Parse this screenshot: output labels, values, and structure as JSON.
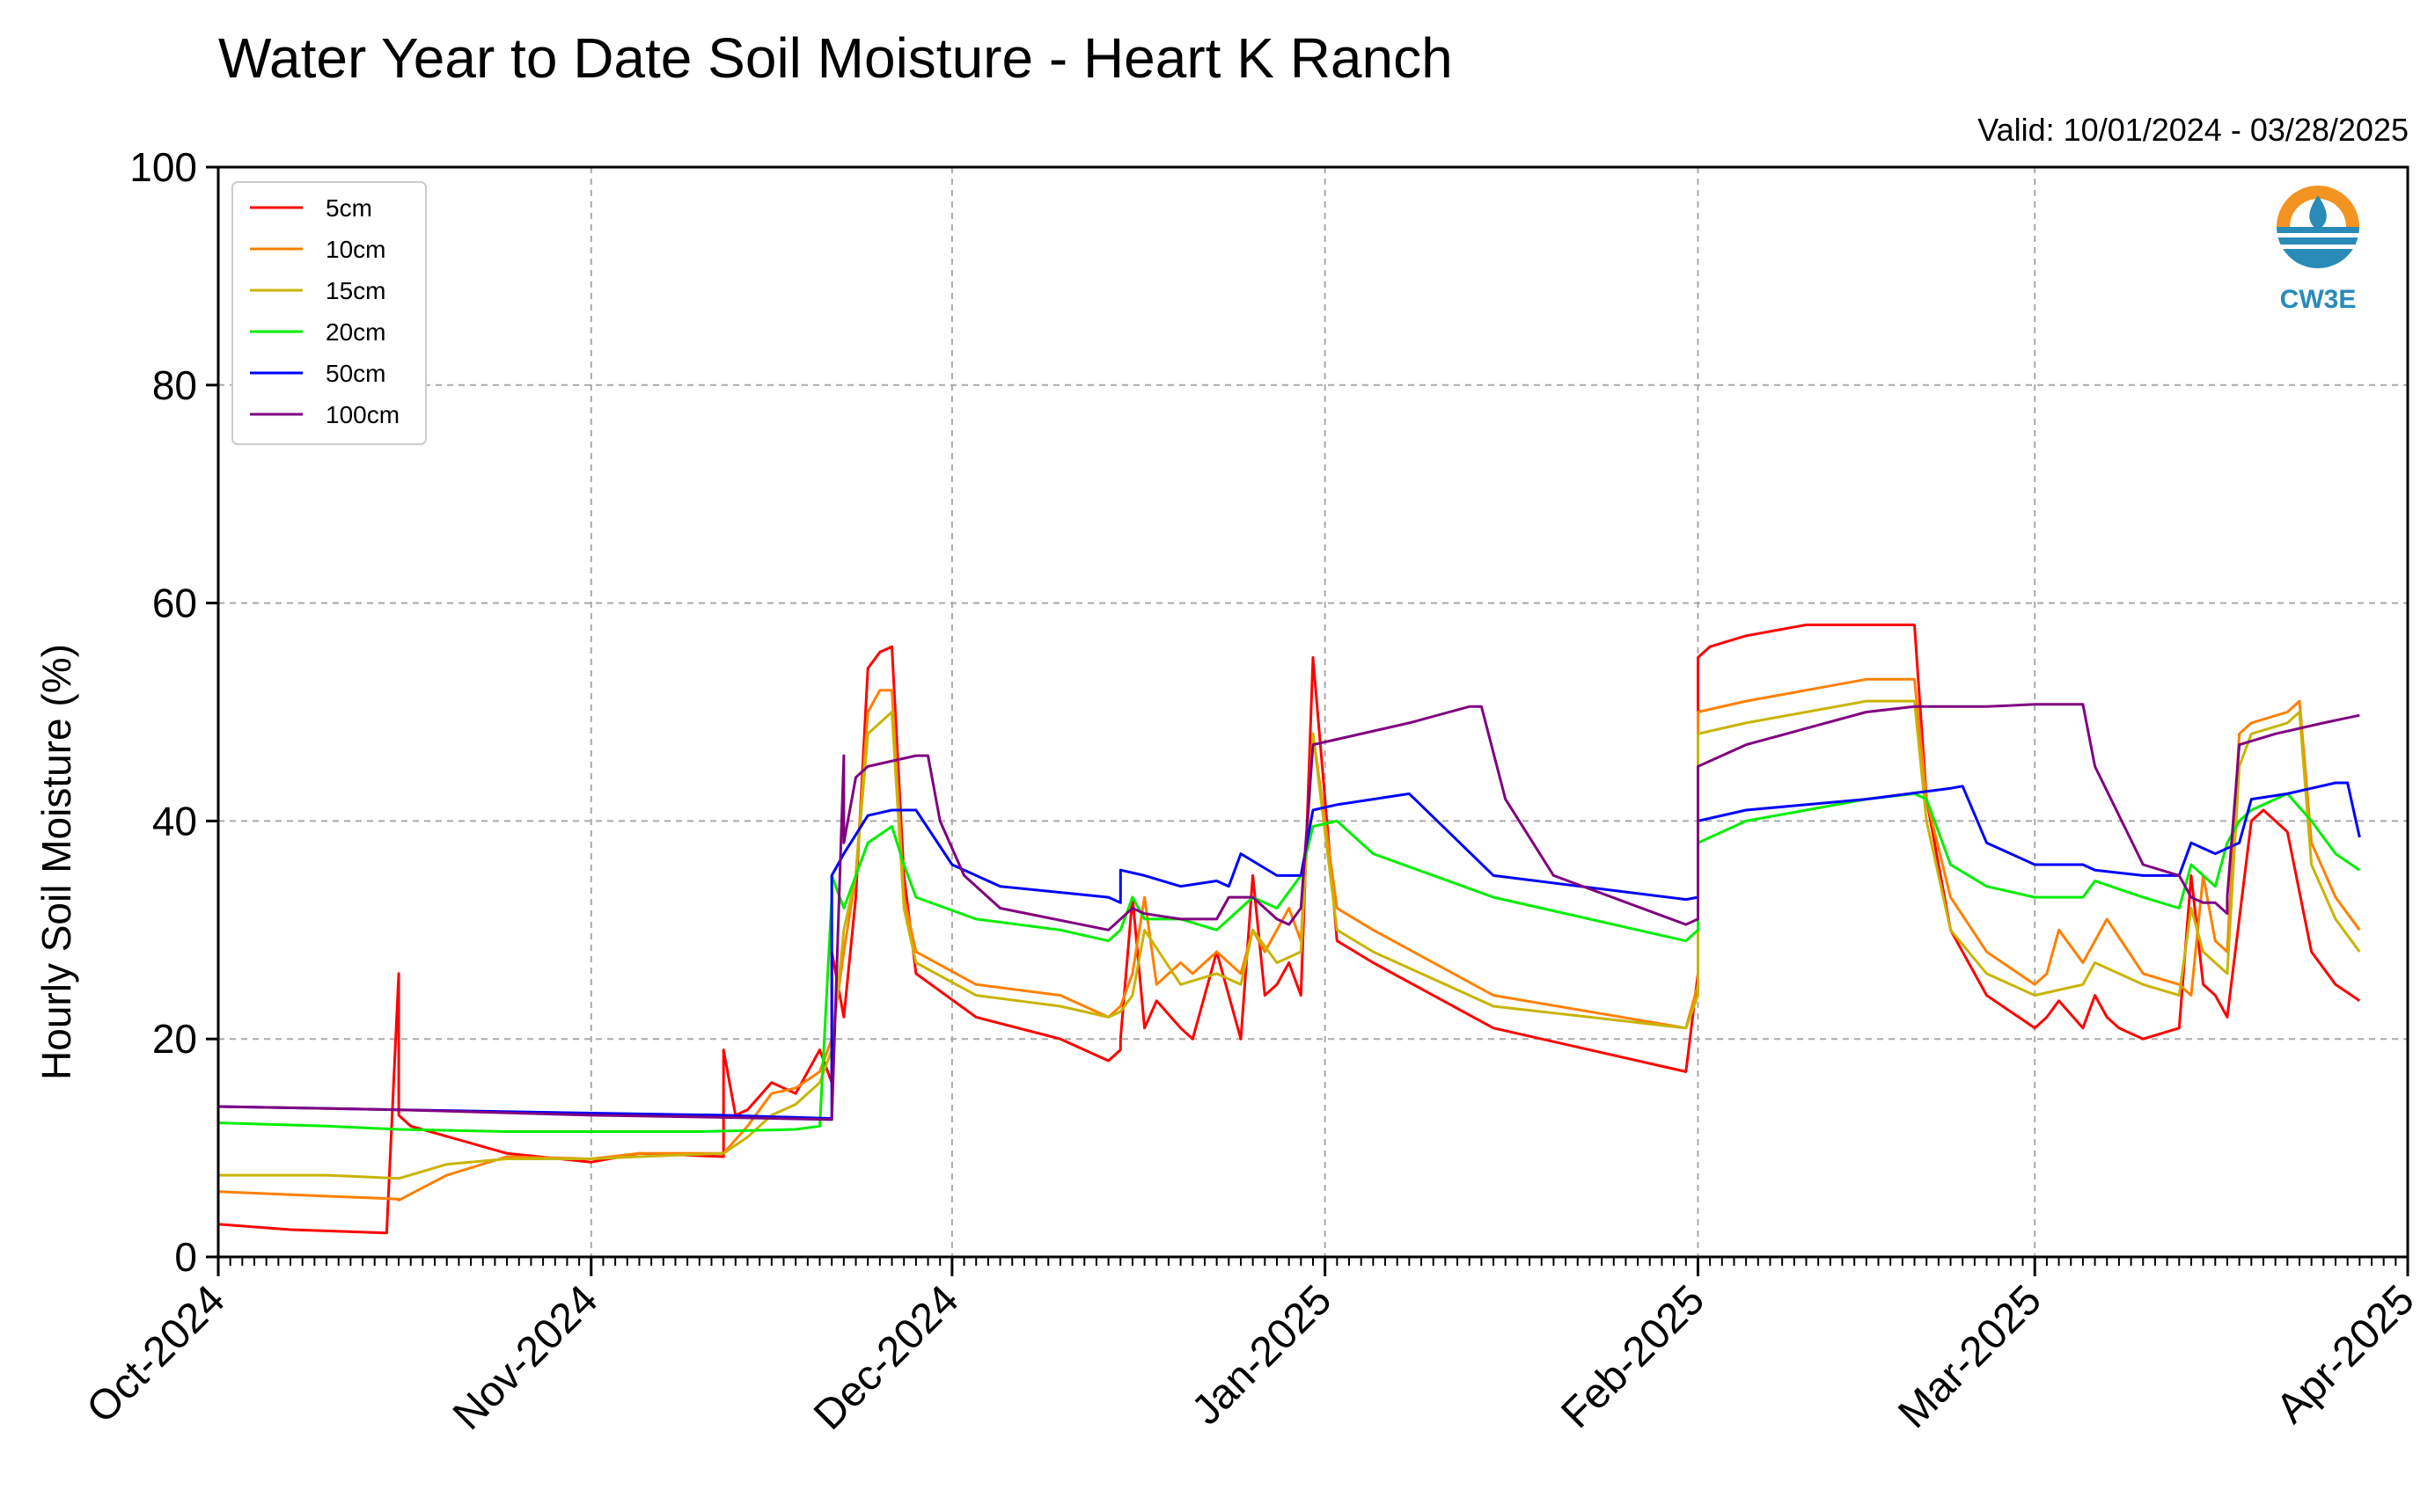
{
  "colors": {
    "5cm": "#ff0000",
    "10cm": "#ff8000",
    "15cm": "#c8b400",
    "20cm": "#00ee00",
    "50cm": "#0000ff",
    "100cm": "#800080",
    "grid": "#aaaaaa",
    "logo_orange": "#f39321",
    "logo_blue": "#2a8ab8"
  },
  "logo": {
    "icon": "cw3e-logo-icon",
    "text": "CW3E"
  },
  "chart_data": {
    "type": "line",
    "title": "Water Year to Date Soil Moisture - Heart K Ranch",
    "subtitle": "Valid: 10/01/2024 - 03/28/2025",
    "xlabel": "",
    "ylabel": "Hourly Soil Moisture (%)",
    "ylim": [
      0,
      100
    ],
    "yticks": [
      0,
      20,
      40,
      60,
      80,
      100
    ],
    "xlim": [
      "2024-10-01",
      "2025-04-01"
    ],
    "xticks": [
      {
        "date": "2024-10-01",
        "label": "Oct-2024"
      },
      {
        "date": "2024-11-01",
        "label": "Nov-2024"
      },
      {
        "date": "2024-12-01",
        "label": "Dec-2024"
      },
      {
        "date": "2025-01-01",
        "label": "Jan-2025"
      },
      {
        "date": "2025-02-01",
        "label": "Feb-2025"
      },
      {
        "date": "2025-03-01",
        "label": "Mar-2025"
      },
      {
        "date": "2025-04-01",
        "label": "Apr-2025"
      }
    ],
    "grid": true,
    "legend_position": "top-left",
    "series": [
      {
        "name": "5cm",
        "x": [
          "2024-10-01",
          "2024-10-07",
          "2024-10-15",
          "2024-10-16",
          "2024-10-16",
          "2024-10-17",
          "2024-10-25",
          "2024-11-01",
          "2024-11-05",
          "2024-11-12",
          "2024-11-12",
          "2024-11-13",
          "2024-11-14",
          "2024-11-16",
          "2024-11-18",
          "2024-11-20",
          "2024-11-21",
          "2024-11-21",
          "2024-11-22",
          "2024-11-23",
          "2024-11-24",
          "2024-11-25",
          "2024-11-26",
          "2024-11-27",
          "2024-11-28",
          "2024-12-03",
          "2024-12-10",
          "2024-12-14",
          "2024-12-15",
          "2024-12-15",
          "2024-12-16",
          "2024-12-17",
          "2024-12-18",
          "2024-12-20",
          "2024-12-21",
          "2024-12-23",
          "2024-12-25",
          "2024-12-26",
          "2024-12-27",
          "2024-12-28",
          "2024-12-29",
          "2024-12-30",
          "2024-12-31",
          "2025-01-02",
          "2025-01-05",
          "2025-01-15",
          "2025-01-31",
          "2025-02-01",
          "2025-02-01",
          "2025-02-02",
          "2025-02-05",
          "2025-02-10",
          "2025-02-15",
          "2025-02-19",
          "2025-02-20",
          "2025-02-22",
          "2025-02-25",
          "2025-03-01",
          "2025-03-02",
          "2025-03-03",
          "2025-03-05",
          "2025-03-06",
          "2025-03-07",
          "2025-03-08",
          "2025-03-10",
          "2025-03-13",
          "2025-03-14",
          "2025-03-15",
          "2025-03-16",
          "2025-03-17",
          "2025-03-19",
          "2025-03-20",
          "2025-03-22",
          "2025-03-24",
          "2025-03-26",
          "2025-03-28"
        ],
        "y": [
          3,
          2.5,
          2.2,
          26,
          13,
          12,
          9.5,
          8.7,
          9.5,
          9.2,
          19,
          13,
          13.5,
          16,
          15,
          19,
          16,
          28,
          22,
          33,
          54,
          55.5,
          56,
          35,
          26,
          22,
          20,
          18,
          19,
          20,
          33,
          21,
          23.5,
          21,
          20,
          28,
          20,
          35,
          24,
          25,
          27,
          24,
          55,
          29,
          27,
          21,
          17,
          26,
          55,
          56,
          57,
          58,
          58,
          58,
          42,
          30,
          24,
          21,
          22,
          23.5,
          21,
          24,
          22,
          21,
          20,
          21,
          35,
          25,
          24,
          22,
          40,
          41,
          39,
          28,
          25,
          23.5
        ]
      },
      {
        "name": "10cm",
        "x": [
          "2024-10-01",
          "2024-10-16",
          "2024-10-16",
          "2024-10-20",
          "2024-10-25",
          "2024-11-01",
          "2024-11-05",
          "2024-11-12",
          "2024-11-14",
          "2024-11-16",
          "2024-11-18",
          "2024-11-20",
          "2024-11-21",
          "2024-11-22",
          "2024-11-23",
          "2024-11-24",
          "2024-11-25",
          "2024-11-26",
          "2024-11-27",
          "2024-11-28",
          "2024-12-03",
          "2024-12-10",
          "2024-12-14",
          "2024-12-15",
          "2024-12-16",
          "2024-12-17",
          "2024-12-18",
          "2024-12-20",
          "2024-12-21",
          "2024-12-23",
          "2024-12-25",
          "2024-12-26",
          "2024-12-27",
          "2024-12-28",
          "2024-12-29",
          "2024-12-30",
          "2024-12-31",
          "2025-01-02",
          "2025-01-05",
          "2025-01-15",
          "2025-01-31",
          "2025-02-01",
          "2025-02-01",
          "2025-02-05",
          "2025-02-10",
          "2025-02-15",
          "2025-02-19",
          "2025-02-20",
          "2025-02-22",
          "2025-02-25",
          "2025-03-01",
          "2025-03-02",
          "2025-03-03",
          "2025-03-05",
          "2025-03-06",
          "2025-03-07",
          "2025-03-10",
          "2025-03-13",
          "2025-03-14",
          "2025-03-15",
          "2025-03-16",
          "2025-03-17",
          "2025-03-18",
          "2025-03-19",
          "2025-03-22",
          "2025-03-23",
          "2025-03-24",
          "2025-03-26",
          "2025-03-28"
        ],
        "y": [
          6,
          5.3,
          5.2,
          7.5,
          9.2,
          9,
          9.5,
          9.5,
          12,
          15,
          15.5,
          17,
          20,
          28,
          35,
          50,
          52,
          52,
          33,
          28,
          25,
          24,
          22,
          23,
          26,
          33,
          25,
          27,
          26,
          28,
          26,
          30,
          28,
          30,
          32,
          29,
          48,
          32,
          30,
          24,
          21,
          25,
          50,
          51,
          52,
          53,
          53,
          42,
          33,
          28,
          25,
          26,
          30,
          27,
          29,
          31,
          26,
          25,
          24,
          35,
          29,
          28,
          48,
          49,
          50,
          51,
          38,
          33,
          30
        ]
      },
      {
        "name": "15cm",
        "x": [
          "2024-10-01",
          "2024-10-10",
          "2024-10-16",
          "2024-10-20",
          "2024-10-25",
          "2024-11-01",
          "2024-11-05",
          "2024-11-12",
          "2024-11-14",
          "2024-11-16",
          "2024-11-18",
          "2024-11-20",
          "2024-11-21",
          "2024-11-22",
          "2024-11-23",
          "2024-11-24",
          "2024-11-26",
          "2024-11-27",
          "2024-11-28",
          "2024-12-03",
          "2024-12-10",
          "2024-12-14",
          "2024-12-15",
          "2024-12-16",
          "2024-12-17",
          "2024-12-20",
          "2024-12-23",
          "2024-12-25",
          "2024-12-26",
          "2024-12-28",
          "2024-12-30",
          "2024-12-31",
          "2025-01-02",
          "2025-01-05",
          "2025-01-15",
          "2025-01-31",
          "2025-02-01",
          "2025-02-01",
          "2025-02-05",
          "2025-02-10",
          "2025-02-15",
          "2025-02-19",
          "2025-02-20",
          "2025-02-22",
          "2025-02-25",
          "2025-03-01",
          "2025-03-05",
          "2025-03-06",
          "2025-03-10",
          "2025-03-13",
          "2025-03-14",
          "2025-03-15",
          "2025-03-16",
          "2025-03-17",
          "2025-03-18",
          "2025-03-19",
          "2025-03-22",
          "2025-03-23",
          "2025-03-24",
          "2025-03-26",
          "2025-03-28"
        ],
        "y": [
          7.5,
          7.5,
          7.2,
          8.5,
          9,
          9,
          9.2,
          9.5,
          11,
          13,
          14,
          16,
          19,
          30,
          35,
          48,
          50,
          32,
          27,
          24,
          23,
          22,
          22.5,
          24,
          30,
          25,
          26,
          25,
          30,
          27,
          28,
          48,
          30,
          28,
          23,
          21,
          24,
          48,
          49,
          50,
          51,
          51,
          40,
          30,
          26,
          24,
          25,
          27,
          25,
          24,
          32,
          28,
          27,
          26,
          45,
          48,
          49,
          50,
          36,
          31,
          28
        ]
      },
      {
        "name": "20cm",
        "x": [
          "2024-10-01",
          "2024-10-10",
          "2024-10-16",
          "2024-10-25",
          "2024-11-01",
          "2024-11-10",
          "2024-11-18",
          "2024-11-20",
          "2024-11-21",
          "2024-11-21",
          "2024-11-22",
          "2024-11-24",
          "2024-11-26",
          "2024-11-27",
          "2024-11-28",
          "2024-12-03",
          "2024-12-10",
          "2024-12-14",
          "2024-12-15",
          "2024-12-16",
          "2024-12-17",
          "2024-12-20",
          "2024-12-23",
          "2024-12-25",
          "2024-12-26",
          "2024-12-28",
          "2024-12-30",
          "2024-12-31",
          "2025-01-02",
          "2025-01-05",
          "2025-01-15",
          "2025-01-31",
          "2025-02-01",
          "2025-02-01",
          "2025-02-05",
          "2025-02-10",
          "2025-02-15",
          "2025-02-19",
          "2025-02-20",
          "2025-02-22",
          "2025-02-25",
          "2025-03-01",
          "2025-03-05",
          "2025-03-06",
          "2025-03-10",
          "2025-03-13",
          "2025-03-14",
          "2025-03-15",
          "2025-03-16",
          "2025-03-17",
          "2025-03-18",
          "2025-03-19",
          "2025-03-22",
          "2025-03-24",
          "2025-03-26",
          "2025-03-28"
        ],
        "y": [
          12.3,
          12,
          11.7,
          11.5,
          11.5,
          11.5,
          11.7,
          12,
          33,
          35,
          32,
          38,
          39.5,
          36,
          33,
          31,
          30,
          29,
          30,
          33,
          31,
          31,
          30,
          32,
          33,
          32,
          35,
          39.5,
          40,
          37,
          33,
          29,
          30,
          38,
          40,
          41,
          42,
          42.5,
          42,
          36,
          34,
          33,
          33,
          34.5,
          33,
          32,
          36,
          35,
          34,
          38,
          40,
          41,
          42.5,
          40,
          37,
          35.5
        ]
      },
      {
        "name": "50cm",
        "x": [
          "2024-10-01",
          "2024-10-16",
          "2024-11-01",
          "2024-11-12",
          "2024-11-21",
          "2024-11-21",
          "2024-11-22",
          "2024-11-24",
          "2024-11-26",
          "2024-11-28",
          "2024-12-01",
          "2024-12-05",
          "2024-12-14",
          "2024-12-15",
          "2024-12-15",
          "2024-12-17",
          "2024-12-20",
          "2024-12-23",
          "2024-12-24",
          "2024-12-25",
          "2024-12-28",
          "2024-12-30",
          "2024-12-31",
          "2025-01-02",
          "2025-01-05",
          "2025-01-08",
          "2025-01-15",
          "2025-01-31",
          "2025-02-01",
          "2025-02-01",
          "2025-02-05",
          "2025-02-15",
          "2025-02-22",
          "2025-02-23",
          "2025-02-25",
          "2025-03-01",
          "2025-03-05",
          "2025-03-06",
          "2025-03-10",
          "2025-03-13",
          "2025-03-14",
          "2025-03-16",
          "2025-03-18",
          "2025-03-19",
          "2025-03-22",
          "2025-03-26",
          "2025-03-27",
          "2025-03-28"
        ],
        "y": [
          13.8,
          13.5,
          13.2,
          13,
          12.7,
          35,
          37,
          40.5,
          41,
          41,
          36,
          34,
          33,
          32.5,
          35.5,
          35,
          34,
          34.5,
          34,
          37,
          35,
          35,
          41,
          41.5,
          42,
          42.5,
          35,
          32.8,
          33,
          40,
          41,
          42,
          43,
          43.2,
          38,
          36,
          36,
          35.5,
          35,
          35,
          38,
          37,
          38,
          42,
          42.5,
          43.5,
          43.5,
          38.5
        ]
      },
      {
        "name": "100cm",
        "x": [
          "2024-10-01",
          "2024-10-16",
          "2024-11-01",
          "2024-11-12",
          "2024-11-21",
          "2024-11-22",
          "2024-11-22",
          "2024-11-23",
          "2024-11-24",
          "2024-11-28",
          "2024-11-29",
          "2024-11-30",
          "2024-12-02",
          "2024-12-05",
          "2024-12-14",
          "2024-12-15",
          "2024-12-16",
          "2024-12-17",
          "2024-12-20",
          "2024-12-23",
          "2024-12-24",
          "2024-12-26",
          "2024-12-28",
          "2024-12-29",
          "2024-12-30",
          "2024-12-31",
          "2025-01-02",
          "2025-01-08",
          "2025-01-13",
          "2025-01-14",
          "2025-01-16",
          "2025-01-20",
          "2025-01-31",
          "2025-02-01",
          "2025-02-01",
          "2025-02-05",
          "2025-02-10",
          "2025-02-15",
          "2025-02-19",
          "2025-02-20",
          "2025-02-25",
          "2025-03-01",
          "2025-03-05",
          "2025-03-06",
          "2025-03-10",
          "2025-03-13",
          "2025-03-14",
          "2025-03-15",
          "2025-03-16",
          "2025-03-17",
          "2025-03-17",
          "2025-03-18",
          "2025-03-21",
          "2025-03-25",
          "2025-03-28"
        ],
        "y": [
          13.8,
          13.5,
          13,
          12.8,
          12.6,
          46,
          38,
          44,
          45,
          46,
          46,
          40,
          35,
          32,
          30,
          31,
          32,
          31.5,
          31,
          31,
          33,
          33,
          31,
          30.5,
          32,
          47,
          47.5,
          49,
          50.5,
          50.5,
          42,
          35,
          30.5,
          31,
          45,
          47,
          48.5,
          50,
          50.5,
          50.5,
          50.5,
          50.7,
          50.7,
          45,
          36,
          35,
          33,
          32.5,
          32.5,
          31.5,
          33,
          47,
          48,
          49,
          49.7
        ]
      }
    ]
  }
}
